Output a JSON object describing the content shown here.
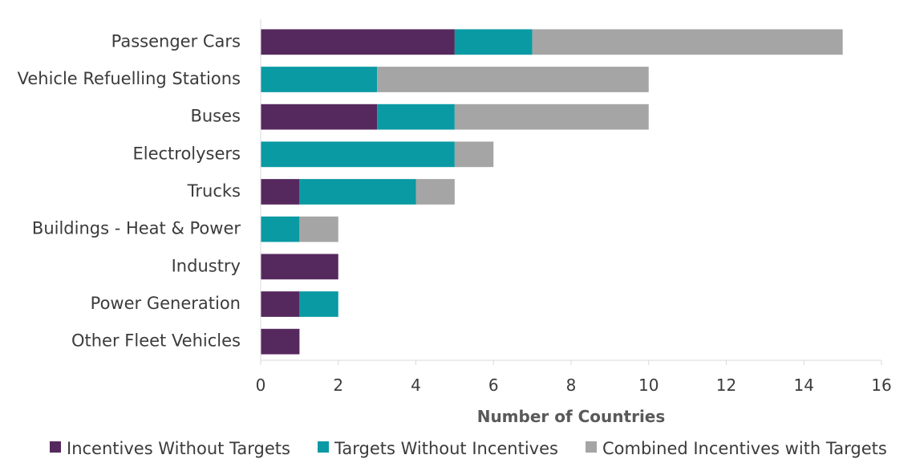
{
  "chart_data": {
    "type": "bar",
    "orientation": "horizontal",
    "stacked": true,
    "categories": [
      "Passenger Cars",
      "Vehicle Refuelling Stations",
      "Buses",
      "Electrolysers",
      "Trucks",
      "Buildings - Heat & Power",
      "Industry",
      "Power Generation",
      "Other Fleet Vehicles"
    ],
    "series": [
      {
        "name": "Incentives Without Targets",
        "color": "#56295e",
        "values": [
          5,
          0,
          3,
          0,
          1,
          0,
          2,
          1,
          1
        ]
      },
      {
        "name": "Targets Without Incentives",
        "color": "#0a9aa3",
        "values": [
          2,
          3,
          2,
          5,
          3,
          1,
          0,
          1,
          0
        ]
      },
      {
        "name": "Combined Incentives with Targets",
        "color": "#a5a5a5",
        "values": [
          8,
          7,
          5,
          1,
          1,
          1,
          0,
          0,
          0
        ]
      }
    ],
    "xlabel": "Number of Countries",
    "ylabel": "",
    "title": "",
    "xlim": [
      0,
      16
    ],
    "xticks": [
      0,
      2,
      4,
      6,
      8,
      10,
      12,
      14,
      16
    ],
    "grid": false,
    "legend_position": "bottom"
  }
}
